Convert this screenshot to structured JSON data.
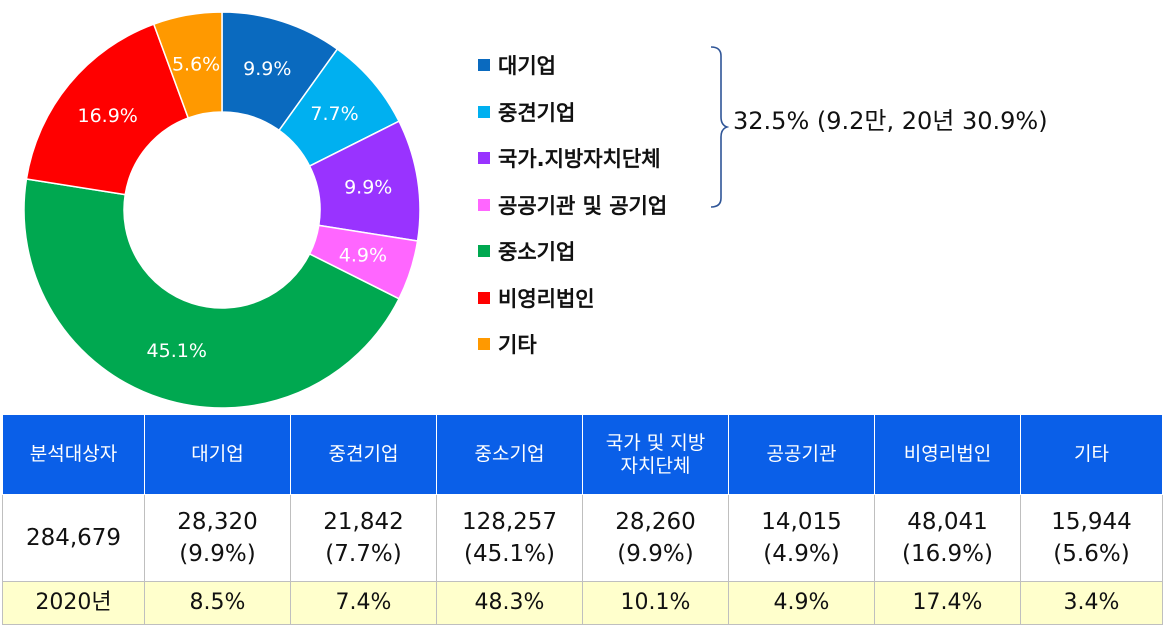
{
  "chart_data": {
    "type": "pie",
    "series": [
      {
        "label": "대기업",
        "value": 9.9,
        "color": "#0a6abf"
      },
      {
        "label": "중견기업",
        "value": 7.7,
        "color": "#00b0f0"
      },
      {
        "label": "국가.지방자치단체",
        "value": 9.9,
        "color": "#9933ff"
      },
      {
        "label": "공공기관 및 공기업",
        "value": 4.9,
        "color": "#ff66ff"
      },
      {
        "label": "중소기업",
        "value": 45.1,
        "color": "#00a850"
      },
      {
        "label": "비영리법인",
        "value": 16.9,
        "color": "#ff0000"
      },
      {
        "label": "기타",
        "value": 5.6,
        "color": "#ff9900"
      }
    ],
    "slice_labels": [
      "9.9%",
      "7.7%",
      "9.9%",
      "4.9%",
      "45.1%",
      "16.9%",
      "5.6%"
    ]
  },
  "bracket_note": "32.5% (9.2만, 20년 30.9%)",
  "table": {
    "headers": [
      [
        "분석대상자"
      ],
      [
        "대기업"
      ],
      [
        "중견기업"
      ],
      [
        "중소기업"
      ],
      [
        "국가 및 지방",
        "자치단체"
      ],
      [
        "공공기관"
      ],
      [
        "비영리법인"
      ],
      [
        "기타"
      ]
    ],
    "counts": [
      [
        "284,679"
      ],
      [
        "28,320",
        "(9.9%)"
      ],
      [
        "21,842",
        "(7.7%)"
      ],
      [
        "128,257",
        "(45.1%)"
      ],
      [
        "28,260",
        "(9.9%)"
      ],
      [
        "14,015",
        "(4.9%)"
      ],
      [
        "48,041",
        "(16.9%)"
      ],
      [
        "15,944",
        "(5.6%)"
      ]
    ],
    "year_row": [
      "2020년",
      "8.5%",
      "7.4%",
      "48.3%",
      "10.1%",
      "4.9%",
      "17.4%",
      "3.4%"
    ]
  }
}
